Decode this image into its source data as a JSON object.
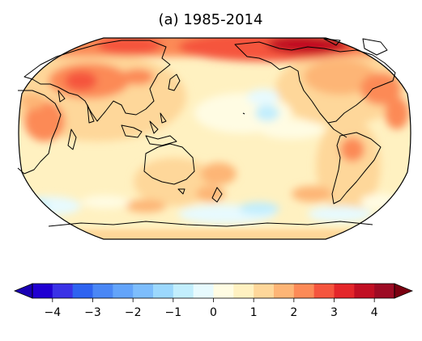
{
  "title": "(a) 1985-2014",
  "colorbar": {
    "ticks": [
      "−4",
      "−3",
      "−2",
      "−1",
      "0",
      "1",
      "2",
      "3",
      "4"
    ],
    "tick_values": [
      -4,
      -3,
      -2,
      -1,
      0,
      1,
      2,
      3,
      4
    ],
    "range": [
      -4.5,
      4.5
    ],
    "step": 0.5,
    "extend": "both",
    "under_color": "#1a00b4",
    "over_color": "#7a0010",
    "colors": [
      "#2000d2",
      "#3a32e6",
      "#2e63f0",
      "#4a87f5",
      "#63a4fa",
      "#7dbdfc",
      "#9cd8fd",
      "#c2eefd",
      "#e7fafe",
      "#fffce3",
      "#fff1c1",
      "#fed79a",
      "#fdb576",
      "#fc8a57",
      "#f5553e",
      "#e4262a",
      "#c10f23",
      "#9d0b24"
    ]
  },
  "map": {
    "projection": "Robinson",
    "central_longitude": 180,
    "features": [
      "coastlines",
      "filled-contours"
    ],
    "ocean_base_color": "#fff1c1",
    "land_base_color": "#fed79a"
  }
}
